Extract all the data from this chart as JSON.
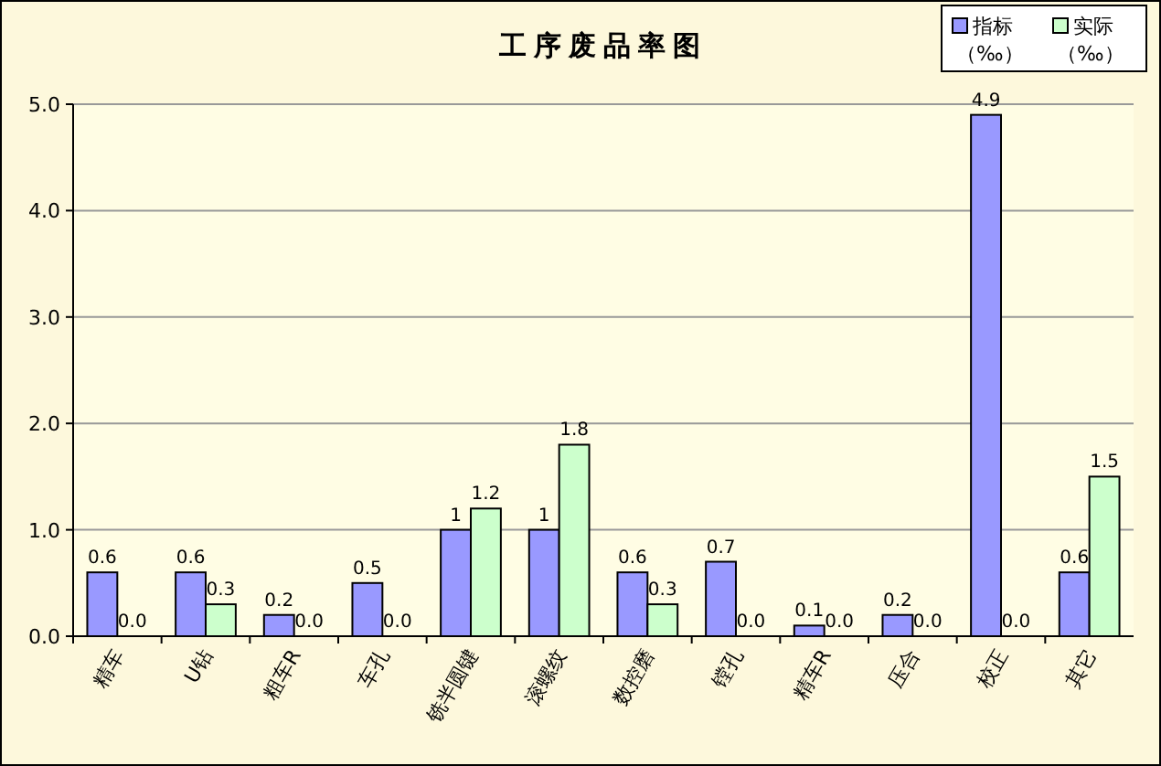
{
  "chart_data": {
    "type": "bar",
    "title": "工序废品率图",
    "categories": [
      "精车",
      "U钻",
      "粗车R",
      "车孔",
      "铣半圆键",
      "滚螺纹",
      "数控磨",
      "镗孔",
      "精车R",
      "压合",
      "校正",
      "其它"
    ],
    "series": [
      {
        "name": "指标（‰）",
        "color": "#9999ff",
        "values": [
          0.6,
          0.6,
          0.2,
          0.5,
          1,
          1,
          0.6,
          0.7,
          0.1,
          0.2,
          4.9,
          0.6
        ],
        "value_labels": [
          "0.6",
          "0.6",
          "0.2",
          "0.5",
          "1",
          "1",
          "0.6",
          "0.7",
          "0.1",
          "0.2",
          "4.9",
          "0.6"
        ]
      },
      {
        "name": "实际（‰）",
        "color": "#ccffcc",
        "values": [
          0,
          0.3,
          0,
          0,
          1.2,
          1.8,
          0.3,
          0,
          0,
          0,
          0,
          1.5
        ],
        "value_labels": [
          "0.0",
          "0.3",
          "0.0",
          "0.0",
          "1.2",
          "1.8",
          "0.3",
          "0.0",
          "0.0",
          "0.0",
          "0.0",
          "1.5"
        ]
      }
    ],
    "ylim": [
      0,
      5
    ],
    "yticks": [
      {
        "value": 0,
        "label": "0.0"
      },
      {
        "value": 1,
        "label": "1.0"
      },
      {
        "value": 2,
        "label": "2.0"
      },
      {
        "value": 3,
        "label": "3.0"
      },
      {
        "value": 4,
        "label": "4.0"
      },
      {
        "value": 5,
        "label": "5.0"
      }
    ],
    "grid": "y",
    "legend": "top right"
  }
}
